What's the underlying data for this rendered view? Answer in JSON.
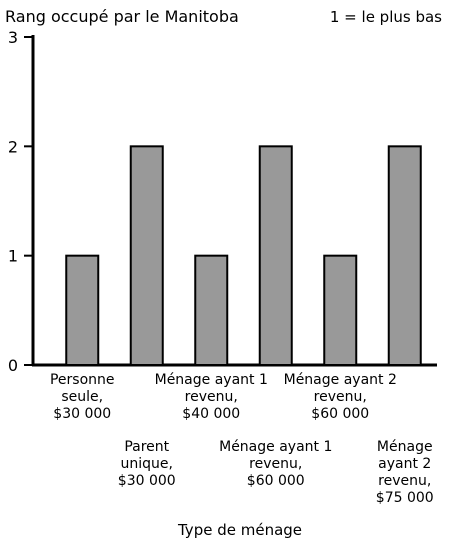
{
  "chart_data": {
    "type": "bar",
    "title": "Rang occupé par le Manitoba",
    "annotation": "1 = le plus bas",
    "x_label": "Type de ménage",
    "categories": [
      "Personne\nseule,\n$30 000",
      "Parent\nunique,\n$30 000",
      "Ménage ayant 1\nrevenu,\n$40 000",
      "Ménage ayant 1\nrevenu,\n$60 000",
      "Ménage ayant 2\nrevenu,\n$60 000",
      "Ménage\nayant 2\nrevenu,\n$75 000"
    ],
    "values": [
      1,
      2,
      1,
      2,
      1,
      2
    ],
    "color": "#999999",
    "ylim": [
      0,
      3
    ],
    "yticks": [
      0,
      1,
      2,
      3
    ],
    "grid": false
  }
}
